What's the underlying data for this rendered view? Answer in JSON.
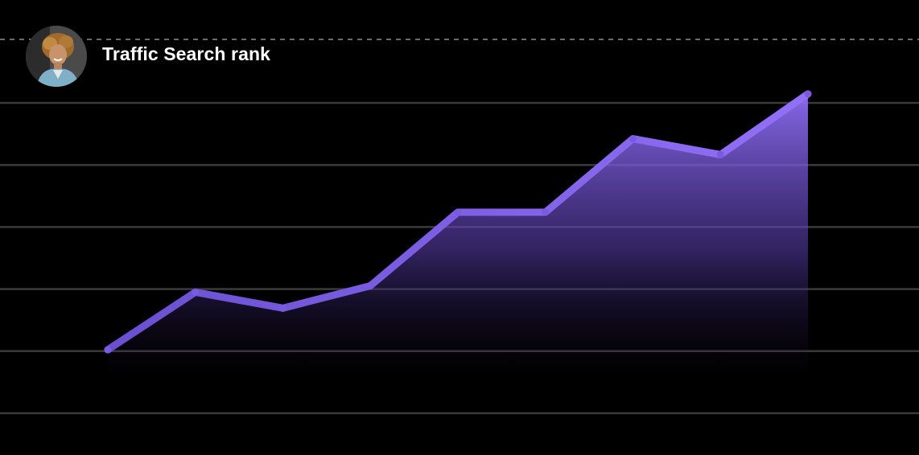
{
  "header": {
    "title": "Traffic Search rank",
    "avatar_icon": "user-avatar"
  },
  "colors": {
    "background": "#000000",
    "line": "#7a5be0",
    "area_top": "#8f6ef5",
    "gridline": "#3a3a3a",
    "dashed_line": "#6a6a6a"
  },
  "chart_data": {
    "type": "area",
    "title": "Traffic Search rank",
    "xlabel": "",
    "ylabel": "",
    "x": [
      0,
      1,
      2,
      3,
      4,
      5,
      6,
      7,
      8
    ],
    "values": [
      0.2,
      2.0,
      1.5,
      2.2,
      4.5,
      4.5,
      6.8,
      6.3,
      8.2
    ],
    "ylim": [
      0,
      9
    ],
    "gridlines": 6,
    "dashed_top_line": true,
    "grid": true,
    "legend": "none"
  }
}
